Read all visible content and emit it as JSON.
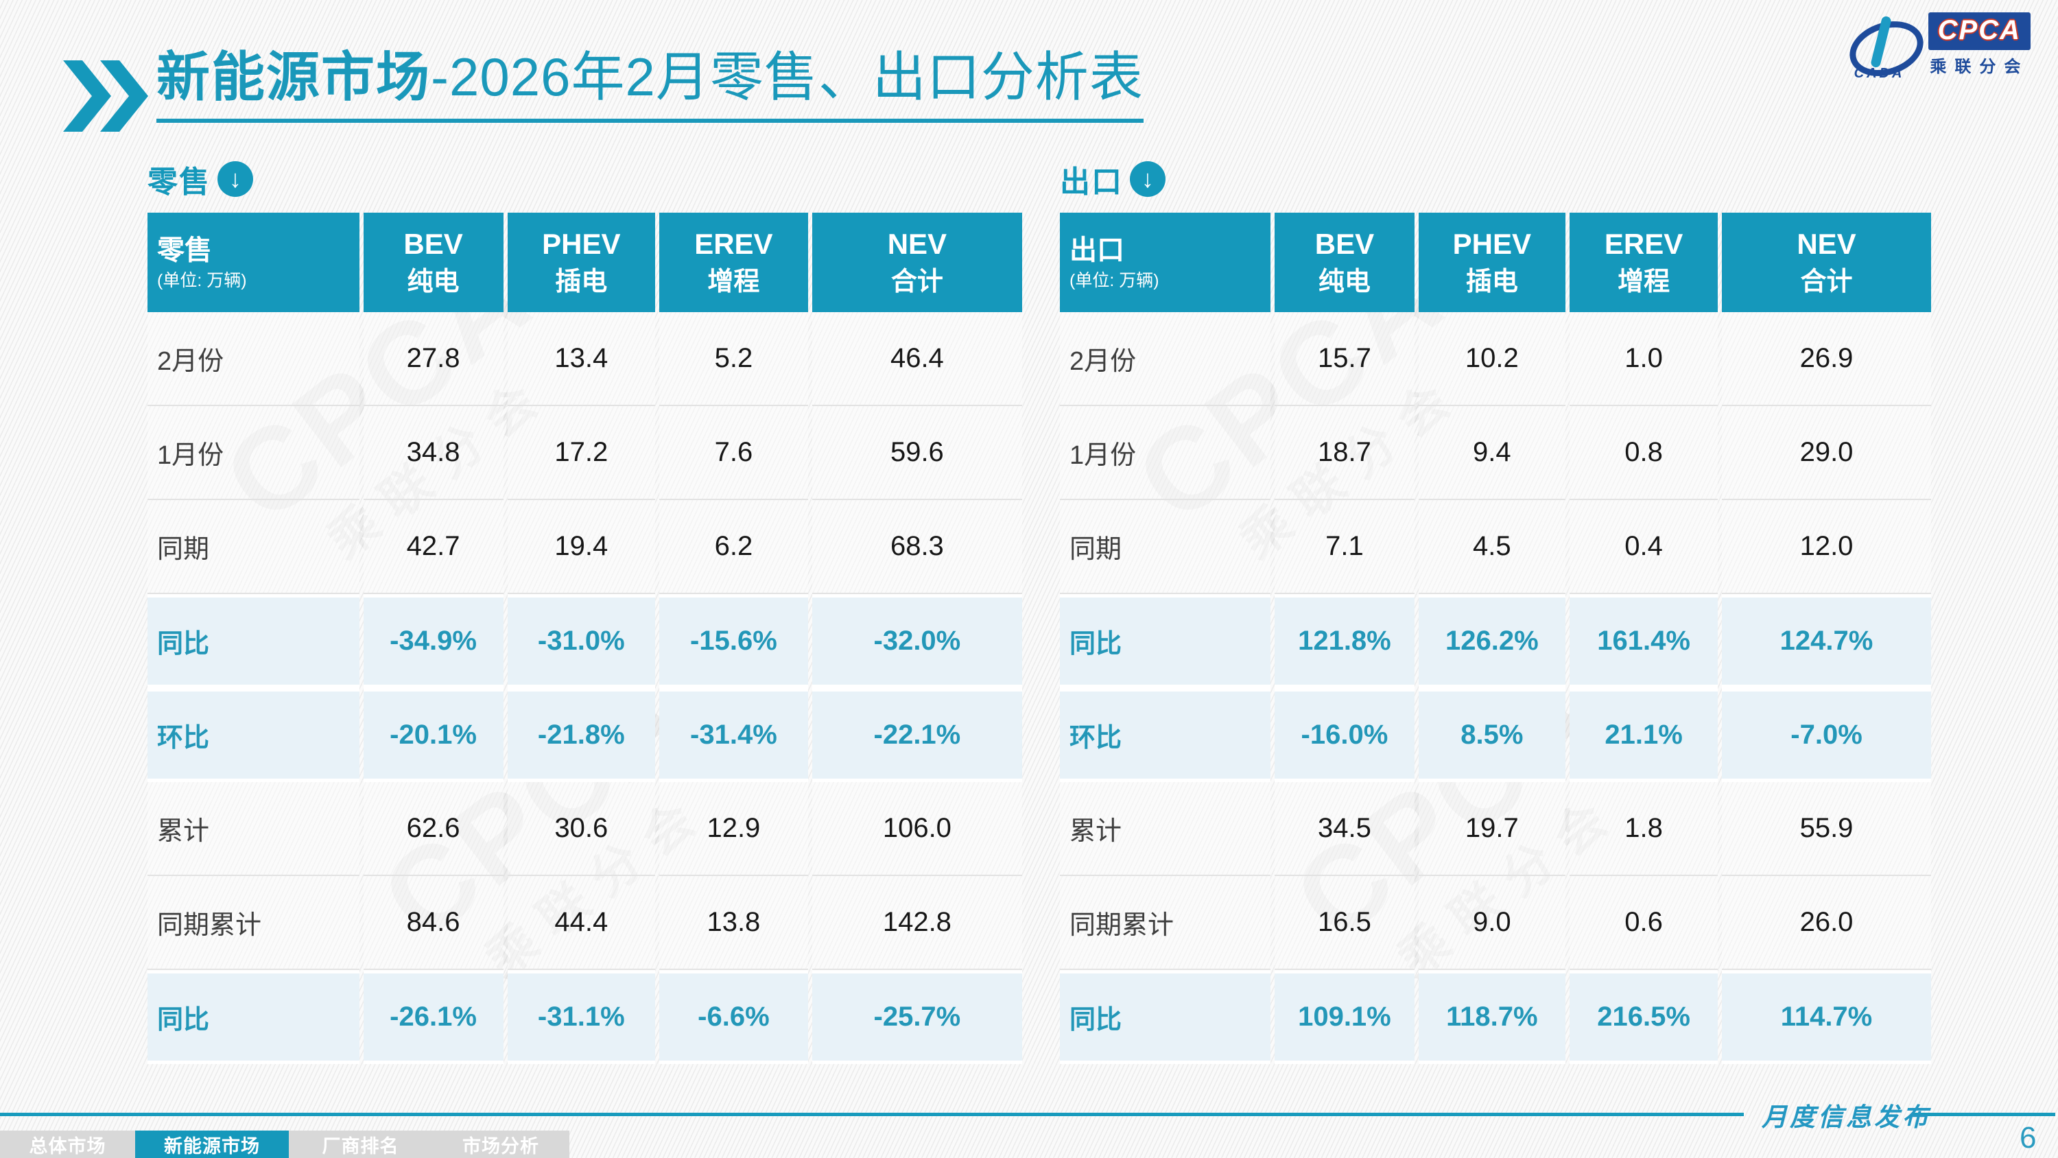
{
  "slide": {
    "title_strong": "新能源市场",
    "title_rest": "-2026年2月零售、出口分析表",
    "publication_label": "月度信息发布",
    "page_number": "6"
  },
  "logo": {
    "cpca": "CPCA",
    "cada": "CADA",
    "sub": "乘联分会"
  },
  "watermark": {
    "big": "CPCA",
    "small": "乘联分会"
  },
  "icons": {
    "down_arrow": "↓"
  },
  "columns": [
    {
      "en": "BEV",
      "cn": "纯电"
    },
    {
      "en": "PHEV",
      "cn": "插电"
    },
    {
      "en": "EREV",
      "cn": "增程"
    },
    {
      "en": "NEV",
      "cn": "合计"
    }
  ],
  "tables": [
    {
      "id": "retail",
      "section_label": "零售",
      "corner_label": "零售",
      "unit": "(单位: 万辆)",
      "rows": [
        {
          "label": "2月份",
          "highlight": false,
          "values": [
            "27.8",
            "13.4",
            "5.2",
            "46.4"
          ]
        },
        {
          "label": "1月份",
          "highlight": false,
          "values": [
            "34.8",
            "17.2",
            "7.6",
            "59.6"
          ]
        },
        {
          "label": "同期",
          "highlight": false,
          "values": [
            "42.7",
            "19.4",
            "6.2",
            "68.3"
          ]
        },
        {
          "label": "同比",
          "highlight": true,
          "values": [
            "-34.9%",
            "-31.0%",
            "-15.6%",
            "-32.0%"
          ]
        },
        {
          "label": "环比",
          "highlight": true,
          "values": [
            "-20.1%",
            "-21.8%",
            "-31.4%",
            "-22.1%"
          ]
        },
        {
          "label": "累计",
          "highlight": false,
          "values": [
            "62.6",
            "30.6",
            "12.9",
            "106.0"
          ]
        },
        {
          "label": "同期累计",
          "highlight": false,
          "values": [
            "84.6",
            "44.4",
            "13.8",
            "142.8"
          ]
        },
        {
          "label": "同比",
          "highlight": true,
          "values": [
            "-26.1%",
            "-31.1%",
            "-6.6%",
            "-25.7%"
          ]
        }
      ]
    },
    {
      "id": "export",
      "section_label": "出口",
      "corner_label": "出口",
      "unit": "(单位: 万辆)",
      "rows": [
        {
          "label": "2月份",
          "highlight": false,
          "values": [
            "15.7",
            "10.2",
            "1.0",
            "26.9"
          ]
        },
        {
          "label": "1月份",
          "highlight": false,
          "values": [
            "18.7",
            "9.4",
            "0.8",
            "29.0"
          ]
        },
        {
          "label": "同期",
          "highlight": false,
          "values": [
            "7.1",
            "4.5",
            "0.4",
            "12.0"
          ]
        },
        {
          "label": "同比",
          "highlight": true,
          "values": [
            "121.8%",
            "126.2%",
            "161.4%",
            "124.7%"
          ]
        },
        {
          "label": "环比",
          "highlight": true,
          "values": [
            "-16.0%",
            "8.5%",
            "21.1%",
            "-7.0%"
          ]
        },
        {
          "label": "累计",
          "highlight": false,
          "values": [
            "34.5",
            "19.7",
            "1.8",
            "55.9"
          ]
        },
        {
          "label": "同期累计",
          "highlight": false,
          "values": [
            "16.5",
            "9.0",
            "0.6",
            "26.0"
          ]
        },
        {
          "label": "同比",
          "highlight": true,
          "values": [
            "109.1%",
            "118.7%",
            "216.5%",
            "114.7%"
          ]
        }
      ]
    }
  ],
  "nav_tabs": [
    {
      "label": "总体市场",
      "active": false
    },
    {
      "label": "新能源市场",
      "active": true
    },
    {
      "label": "厂商排名",
      "active": false
    },
    {
      "label": "市场分析",
      "active": false
    }
  ],
  "colors": {
    "teal": "#1598BB",
    "teal_text": "#2397B8",
    "highlight_row_bg": "#E8F2F8",
    "nav_gray": "#D8D8D8",
    "logo_blue": "#1E4B9B",
    "logo_red": "#CC3928"
  }
}
